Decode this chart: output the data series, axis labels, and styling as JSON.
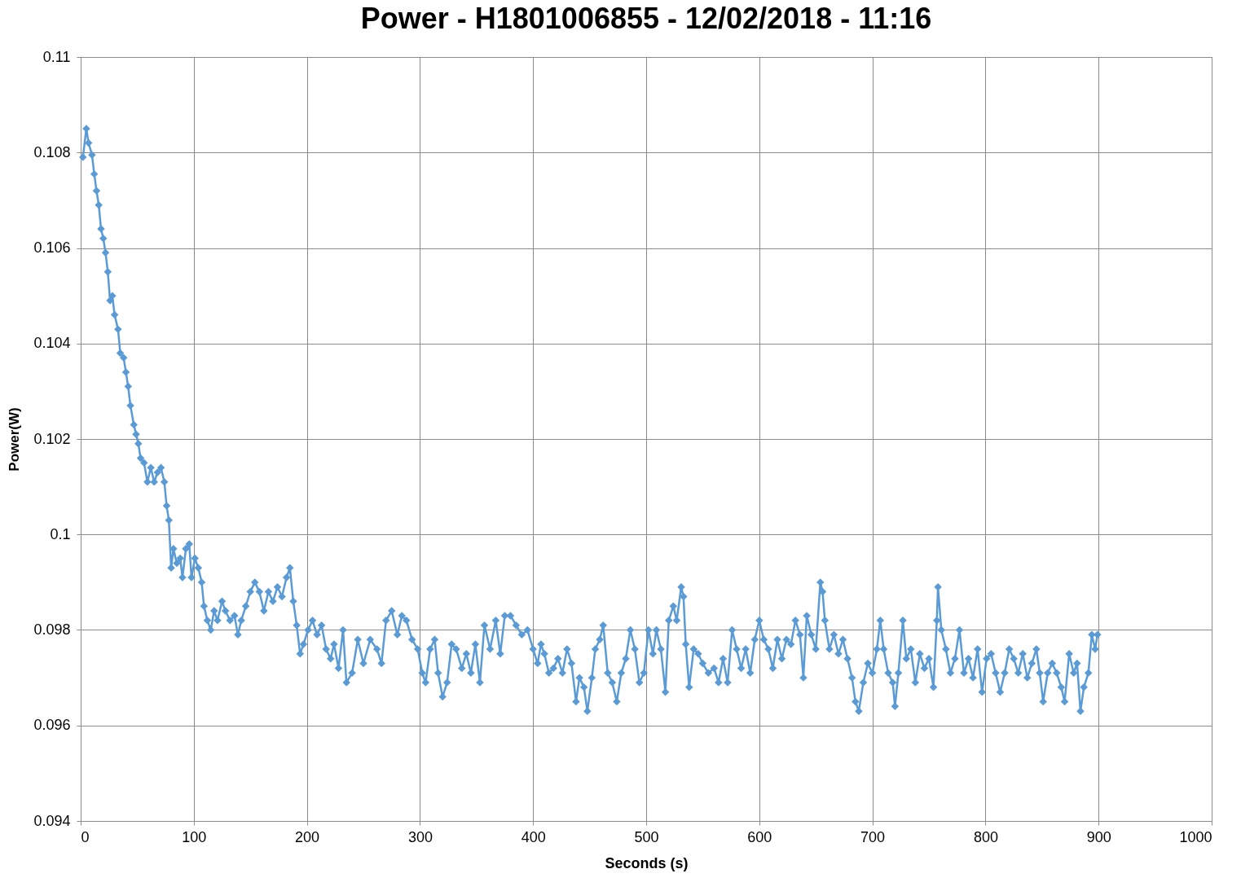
{
  "chart_data": {
    "type": "line",
    "title": "Power - H1801006855 - 12/02/2018 - 11:16",
    "xlabel": "Seconds (s)",
    "ylabel": "Power(W)",
    "xlim": [
      0,
      1000
    ],
    "xticks": [
      0,
      100,
      200,
      300,
      400,
      500,
      600,
      700,
      800,
      900,
      1000
    ],
    "ylim": [
      0.094,
      0.11
    ],
    "yticks": [
      0.094,
      0.096,
      0.098,
      0.1,
      0.102,
      0.104,
      0.106,
      0.108,
      0.11
    ],
    "grid": true,
    "legend": false,
    "marker": "diamond",
    "line_style": "solid",
    "x": [
      2,
      5,
      7,
      10,
      12,
      14,
      16,
      18,
      20,
      22,
      24,
      26,
      28,
      30,
      33,
      35,
      38,
      40,
      42,
      44,
      47,
      49,
      51,
      53,
      56,
      59,
      62,
      65,
      68,
      71,
      74,
      76,
      78,
      80,
      82,
      85,
      88,
      90,
      93,
      96,
      98,
      101,
      104,
      107,
      109,
      112,
      115,
      118,
      121,
      125,
      128,
      132,
      136,
      139,
      142,
      146,
      150,
      154,
      158,
      162,
      166,
      170,
      174,
      178,
      182,
      185,
      188,
      191,
      194,
      197,
      201,
      205,
      209,
      213,
      217,
      221,
      224,
      228,
      232,
      235,
      240,
      245,
      250,
      256,
      262,
      266,
      270,
      275,
      280,
      284,
      288,
      293,
      298,
      302,
      305,
      309,
      313,
      316,
      320,
      324,
      328,
      332,
      337,
      341,
      345,
      349,
      353,
      357,
      362,
      367,
      371,
      375,
      380,
      385,
      390,
      395,
      400,
      404,
      407,
      410,
      414,
      418,
      422,
      426,
      430,
      434,
      438,
      441,
      445,
      448,
      452,
      455,
      459,
      462,
      466,
      470,
      474,
      478,
      482,
      486,
      490,
      494,
      498,
      502,
      506,
      509,
      513,
      517,
      520,
      524,
      527,
      531,
      533,
      535,
      538,
      542,
      546,
      550,
      555,
      560,
      564,
      568,
      572,
      576,
      580,
      584,
      588,
      592,
      596,
      600,
      604,
      608,
      612,
      616,
      620,
      624,
      628,
      632,
      636,
      639,
      642,
      646,
      650,
      654,
      656,
      658,
      662,
      666,
      670,
      674,
      678,
      682,
      685,
      688,
      692,
      696,
      700,
      704,
      707,
      710,
      714,
      718,
      720,
      723,
      727,
      730,
      734,
      738,
      742,
      746,
      750,
      754,
      757,
      758,
      761,
      765,
      769,
      773,
      777,
      781,
      785,
      789,
      793,
      797,
      801,
      805,
      809,
      813,
      817,
      821,
      825,
      829,
      833,
      837,
      841,
      845,
      848,
      851,
      855,
      859,
      863,
      867,
      870,
      874,
      878,
      881,
      884,
      887,
      891,
      894,
      897,
      899
    ],
    "series": [
      {
        "color": "#5b9bd5",
        "values": [
          0.1079,
          0.1085,
          0.1082,
          0.10795,
          0.10755,
          0.1072,
          0.1069,
          0.1064,
          0.1062,
          0.1059,
          0.1055,
          0.1049,
          0.105,
          0.1046,
          0.1043,
          0.1038,
          0.1037,
          0.1034,
          0.1031,
          0.1027,
          0.1023,
          0.1021,
          0.1019,
          0.1016,
          0.1015,
          0.1011,
          0.1014,
          0.1011,
          0.1013,
          0.1014,
          0.1011,
          0.1006,
          0.1003,
          0.0993,
          0.0997,
          0.0994,
          0.0995,
          0.0991,
          0.0997,
          0.0998,
          0.0991,
          0.0995,
          0.0993,
          0.099,
          0.0985,
          0.0982,
          0.098,
          0.0984,
          0.0982,
          0.0986,
          0.0984,
          0.0982,
          0.0983,
          0.0979,
          0.0982,
          0.0985,
          0.0988,
          0.099,
          0.0988,
          0.0984,
          0.0988,
          0.0986,
          0.0989,
          0.0987,
          0.0991,
          0.0993,
          0.0986,
          0.0981,
          0.0975,
          0.0977,
          0.098,
          0.0982,
          0.0979,
          0.0981,
          0.0976,
          0.0974,
          0.0977,
          0.0972,
          0.098,
          0.0969,
          0.0971,
          0.0978,
          0.0973,
          0.0978,
          0.0976,
          0.0973,
          0.0982,
          0.0984,
          0.0979,
          0.0983,
          0.0982,
          0.0978,
          0.0976,
          0.0971,
          0.0969,
          0.0976,
          0.0978,
          0.0971,
          0.0966,
          0.0969,
          0.0977,
          0.0976,
          0.0972,
          0.0975,
          0.0971,
          0.0977,
          0.0969,
          0.0981,
          0.0976,
          0.0982,
          0.0975,
          0.0983,
          0.0983,
          0.0981,
          0.0979,
          0.098,
          0.0976,
          0.0973,
          0.0977,
          0.0975,
          0.0971,
          0.0972,
          0.0974,
          0.0971,
          0.0976,
          0.0973,
          0.0965,
          0.097,
          0.0968,
          0.0963,
          0.097,
          0.0976,
          0.0978,
          0.0981,
          0.0971,
          0.0969,
          0.0965,
          0.0971,
          0.0974,
          0.098,
          0.0976,
          0.0969,
          0.0971,
          0.098,
          0.0975,
          0.098,
          0.0976,
          0.0967,
          0.0982,
          0.0985,
          0.0982,
          0.0989,
          0.0987,
          0.0977,
          0.0968,
          0.0976,
          0.0975,
          0.0973,
          0.0971,
          0.0972,
          0.0969,
          0.0974,
          0.0969,
          0.098,
          0.0976,
          0.0972,
          0.0976,
          0.0971,
          0.0978,
          0.0982,
          0.0978,
          0.0976,
          0.0972,
          0.0978,
          0.0974,
          0.0978,
          0.0977,
          0.0982,
          0.0979,
          0.097,
          0.0983,
          0.0979,
          0.0976,
          0.099,
          0.0988,
          0.0982,
          0.0976,
          0.0979,
          0.0975,
          0.0978,
          0.0974,
          0.097,
          0.0965,
          0.0963,
          0.0969,
          0.0973,
          0.0971,
          0.0976,
          0.0982,
          0.0976,
          0.0971,
          0.0969,
          0.0964,
          0.0971,
          0.0982,
          0.0974,
          0.0976,
          0.0969,
          0.0975,
          0.0972,
          0.0974,
          0.0968,
          0.0982,
          0.0989,
          0.098,
          0.0976,
          0.0971,
          0.0974,
          0.098,
          0.0971,
          0.0974,
          0.097,
          0.0976,
          0.0967,
          0.0974,
          0.0975,
          0.0971,
          0.0967,
          0.0971,
          0.0976,
          0.0974,
          0.0971,
          0.0975,
          0.097,
          0.0973,
          0.0976,
          0.0971,
          0.0965,
          0.0971,
          0.0973,
          0.0971,
          0.0968,
          0.0965,
          0.0975,
          0.0971,
          0.0973,
          0.0963,
          0.0968,
          0.0971,
          0.0979,
          0.0976,
          0.0979
        ]
      }
    ]
  }
}
